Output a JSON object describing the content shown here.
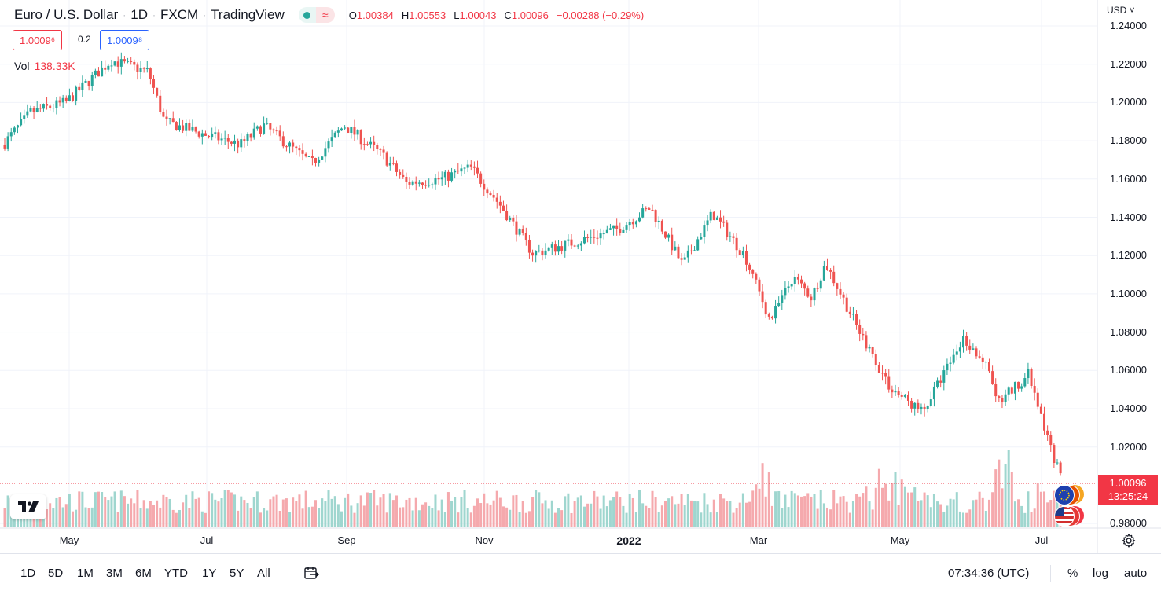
{
  "header": {
    "symbol": "Euro / U.S. Dollar",
    "interval": "1D",
    "exchange": "FXCM",
    "source": "TradingView",
    "open_label": "O",
    "open": "1.00384",
    "high_label": "H",
    "high": "1.00553",
    "low_label": "L",
    "low": "1.00043",
    "close_label": "C",
    "close": "1.00096",
    "change": "−0.00288 (−0.29%)",
    "status_wave": "≈"
  },
  "trade": {
    "sell": "1.0009⁶",
    "spread": "0.2",
    "buy": "1.0009⁸"
  },
  "volume": {
    "label": "Vol",
    "value": "138.33K"
  },
  "price_axis": {
    "currency": "USD",
    "ticks": [
      "1.24000",
      "1.22000",
      "1.20000",
      "1.18000",
      "1.16000",
      "1.14000",
      "1.12000",
      "1.10000",
      "1.08000",
      "1.06000",
      "1.04000",
      "1.02000",
      "0.98000"
    ],
    "last_price": "1.00096",
    "countdown": "13:25:24"
  },
  "time_axis": {
    "ticks": [
      "May",
      "Jul",
      "Sep",
      "Nov",
      "2022",
      "Mar",
      "May",
      "Jul"
    ]
  },
  "toolbar": {
    "ranges": [
      "1D",
      "5D",
      "1M",
      "3M",
      "6M",
      "YTD",
      "1Y",
      "5Y",
      "All"
    ],
    "clock": "07:34:36 (UTC)",
    "percent": "%",
    "log": "log",
    "auto": "auto"
  },
  "colors": {
    "up": "#26a69a",
    "down": "#ef5350",
    "up_vol": "#9fd6cf",
    "down_vol": "#f5a9ad",
    "grid": "#f0f3fa",
    "accent": "#2962ff"
  },
  "chart_data": {
    "type": "candlestick",
    "title": "Euro / U.S. Dollar · 1D · FXCM",
    "x_start": "2021-04-08",
    "x_end": "2022-07-12",
    "ylim": [
      0.975,
      1.245
    ],
    "anchors": [
      {
        "date": "2021-04-08",
        "close": 1.178
      },
      {
        "date": "2021-04-20",
        "close": 1.195
      },
      {
        "date": "2021-05-05",
        "close": 1.2
      },
      {
        "date": "2021-05-25",
        "close": 1.222
      },
      {
        "date": "2021-06-10",
        "close": 1.216
      },
      {
        "date": "2021-06-17",
        "close": 1.19
      },
      {
        "date": "2021-07-05",
        "close": 1.183
      },
      {
        "date": "2021-07-20",
        "close": 1.178
      },
      {
        "date": "2021-07-30",
        "close": 1.188
      },
      {
        "date": "2021-08-20",
        "close": 1.168
      },
      {
        "date": "2021-09-03",
        "close": 1.188
      },
      {
        "date": "2021-09-20",
        "close": 1.172
      },
      {
        "date": "2021-09-30",
        "close": 1.158
      },
      {
        "date": "2021-10-15",
        "close": 1.16
      },
      {
        "date": "2021-10-28",
        "close": 1.166
      },
      {
        "date": "2021-11-10",
        "close": 1.146
      },
      {
        "date": "2021-11-24",
        "close": 1.121
      },
      {
        "date": "2021-12-15",
        "close": 1.128
      },
      {
        "date": "2021-12-31",
        "close": 1.134
      },
      {
        "date": "2022-01-14",
        "close": 1.145
      },
      {
        "date": "2022-01-28",
        "close": 1.115
      },
      {
        "date": "2022-02-10",
        "close": 1.142
      },
      {
        "date": "2022-02-24",
        "close": 1.12
      },
      {
        "date": "2022-03-07",
        "close": 1.086
      },
      {
        "date": "2022-03-17",
        "close": 1.109
      },
      {
        "date": "2022-03-25",
        "close": 1.098
      },
      {
        "date": "2022-03-31",
        "close": 1.116
      },
      {
        "date": "2022-04-14",
        "close": 1.082
      },
      {
        "date": "2022-04-28",
        "close": 1.051
      },
      {
        "date": "2022-05-12",
        "close": 1.038
      },
      {
        "date": "2022-05-30",
        "close": 1.077
      },
      {
        "date": "2022-06-09",
        "close": 1.062
      },
      {
        "date": "2022-06-14",
        "close": 1.043
      },
      {
        "date": "2022-06-27",
        "close": 1.058
      },
      {
        "date": "2022-07-05",
        "close": 1.026
      },
      {
        "date": "2022-07-12",
        "close": 1.001
      }
    ]
  }
}
